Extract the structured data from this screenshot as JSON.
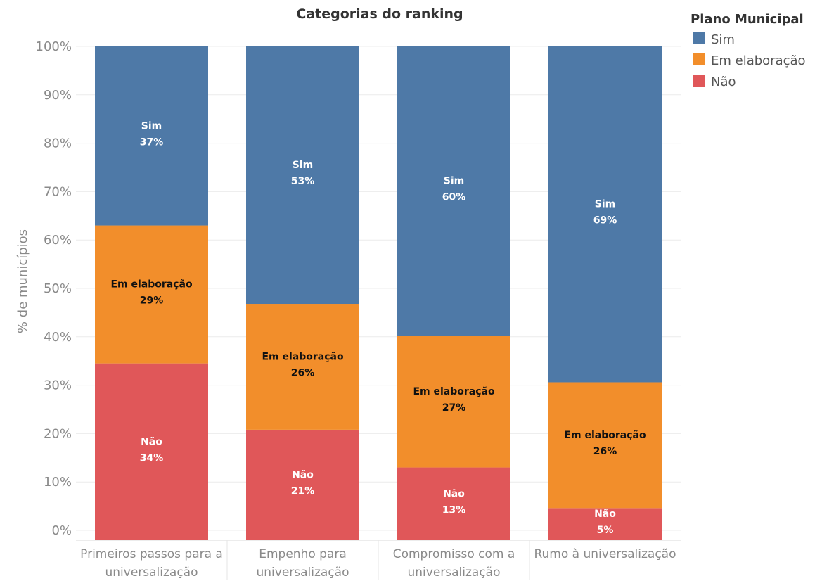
{
  "chart_data": {
    "type": "bar",
    "stacked": true,
    "title": "Categorias do ranking",
    "ylabel": "% de municípios",
    "xlabel": "",
    "ylim": [
      0,
      100
    ],
    "yticks": [
      "100%",
      "90%",
      "80%",
      "70%",
      "60%",
      "50%",
      "40%",
      "30%",
      "20%",
      "10%",
      "0%"
    ],
    "grid": true,
    "categories": [
      [
        "Primeiros passos para a",
        "universalização"
      ],
      [
        "Empenho para",
        "universalização"
      ],
      [
        "Compromisso com a",
        "universalização"
      ],
      [
        "Rumo à universalização"
      ]
    ],
    "series": [
      {
        "name": "Não",
        "color": "#e05759",
        "label_color": "#ffffff",
        "values": [
          34.5,
          20.8,
          13.0,
          4.6
        ],
        "labels": [
          "34%",
          "21%",
          "13%",
          "5%"
        ]
      },
      {
        "name": "Em elaboração",
        "color": "#f28e2b",
        "label_color": "#111111",
        "values": [
          28.5,
          26.0,
          27.2,
          26.0
        ],
        "labels": [
          "29%",
          "26%",
          "27%",
          "26%"
        ]
      },
      {
        "name": "Sim",
        "color": "#4e79a7",
        "label_color": "#ffffff",
        "values": [
          37.0,
          53.2,
          59.8,
          69.4
        ],
        "labels": [
          "37%",
          "53%",
          "60%",
          "69%"
        ]
      }
    ],
    "legend": {
      "title": "Plano Municipal",
      "position": "top-right",
      "items": [
        "Sim",
        "Em elaboração",
        "Não"
      ]
    }
  }
}
